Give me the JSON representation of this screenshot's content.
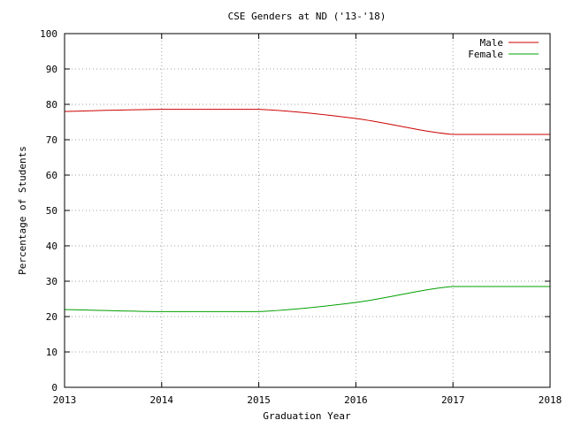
{
  "chart_data": {
    "type": "line",
    "title": "CSE Genders at ND ('13-'18)",
    "xlabel": "Graduation Year",
    "ylabel": "Percentage of Students",
    "x": [
      2013,
      2014,
      2015,
      2016,
      2017,
      2018
    ],
    "xlim": [
      2013,
      2018
    ],
    "ylim": [
      0,
      100
    ],
    "xticks": [
      "2013",
      "2014",
      "2015",
      "2016",
      "2017",
      "2018"
    ],
    "yticks": [
      "0",
      "10",
      "20",
      "30",
      "40",
      "50",
      "60",
      "70",
      "80",
      "90",
      "100"
    ],
    "grid": true,
    "legend_position": "top-right",
    "series": [
      {
        "name": "Male",
        "color": "#cc0000",
        "values": [
          78.0,
          78.6,
          78.6,
          76.0,
          71.5,
          71.5
        ]
      },
      {
        "name": "Female",
        "color": "#00a000",
        "values": [
          22.0,
          21.4,
          21.4,
          24.0,
          28.5,
          28.5
        ]
      }
    ]
  }
}
